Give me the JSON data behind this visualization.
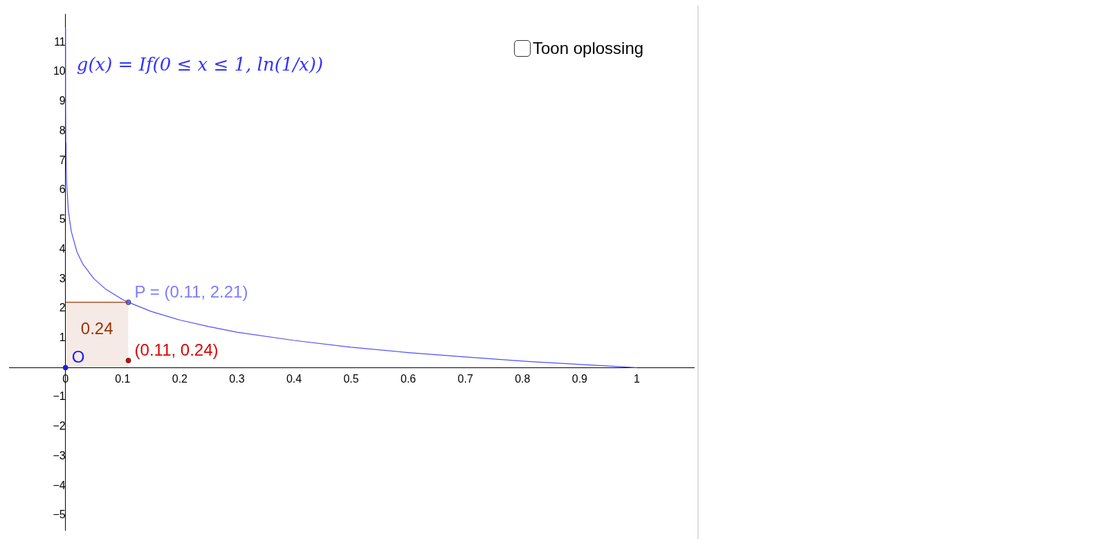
{
  "chart_data": {
    "type": "line",
    "title": "g(x) = If(0 ≤ x ≤ 1, ln(1/x))",
    "xlim": [
      -0.099,
      1.1
    ],
    "ylim": [
      -5.5,
      11.95
    ],
    "xticks": [
      0,
      0.1,
      0.2,
      0.3,
      0.4,
      0.5,
      0.6,
      0.7,
      0.8,
      0.9,
      1
    ],
    "yticks": [
      {
        "value": -5,
        "label": "−5"
      },
      {
        "value": -4,
        "label": "−4"
      },
      {
        "value": -3,
        "label": "−3"
      },
      {
        "value": -2,
        "label": "−2"
      },
      {
        "value": -1,
        "label": "−1"
      },
      1,
      2,
      3,
      4,
      5,
      6,
      7,
      8,
      9,
      10,
      11
    ],
    "grid": false,
    "legend": false,
    "series": [
      {
        "type": "line",
        "color": "#4d4dff",
        "marker": "none",
        "x": [
          1e-05,
          0.0001,
          0.0005,
          0.001,
          0.002,
          0.005,
          0.01,
          0.02,
          0.03,
          0.05,
          0.07,
          0.1,
          0.11,
          0.15,
          0.2,
          0.25,
          0.3,
          0.4,
          0.5,
          0.6,
          0.7,
          0.8,
          0.9,
          1
        ],
        "values": [
          11.5,
          9.21,
          7.6,
          6.91,
          6.21,
          5.3,
          4.61,
          3.91,
          3.51,
          3.0,
          2.66,
          2.3,
          2.21,
          1.9,
          1.61,
          1.39,
          1.2,
          0.92,
          0.69,
          0.51,
          0.36,
          0.22,
          0.11,
          0
        ]
      },
      {
        "type": "area",
        "color": "#993300",
        "marker": "none",
        "x": [
          0,
          0.11
        ],
        "values": [
          2.21,
          2.21
        ],
        "name": "0.24"
      },
      {
        "type": "scatter",
        "color": "#7d7dff",
        "marker": "circle",
        "x": [
          0.11
        ],
        "values": [
          2.21
        ],
        "value_labels": [
          "P = (0.11, 2.21)"
        ]
      },
      {
        "type": "scatter",
        "color": "#dd0000",
        "marker": "circle",
        "x": [
          0.11
        ],
        "values": [
          0.24
        ],
        "value_labels": [
          "(0.11, 0.24)"
        ]
      },
      {
        "type": "scatter",
        "color": "#1a1aff",
        "marker": "circle",
        "x": [
          0
        ],
        "values": [
          0
        ],
        "value_labels": [
          "O"
        ]
      }
    ],
    "annotations": [
      "Toon oplossing"
    ]
  }
}
